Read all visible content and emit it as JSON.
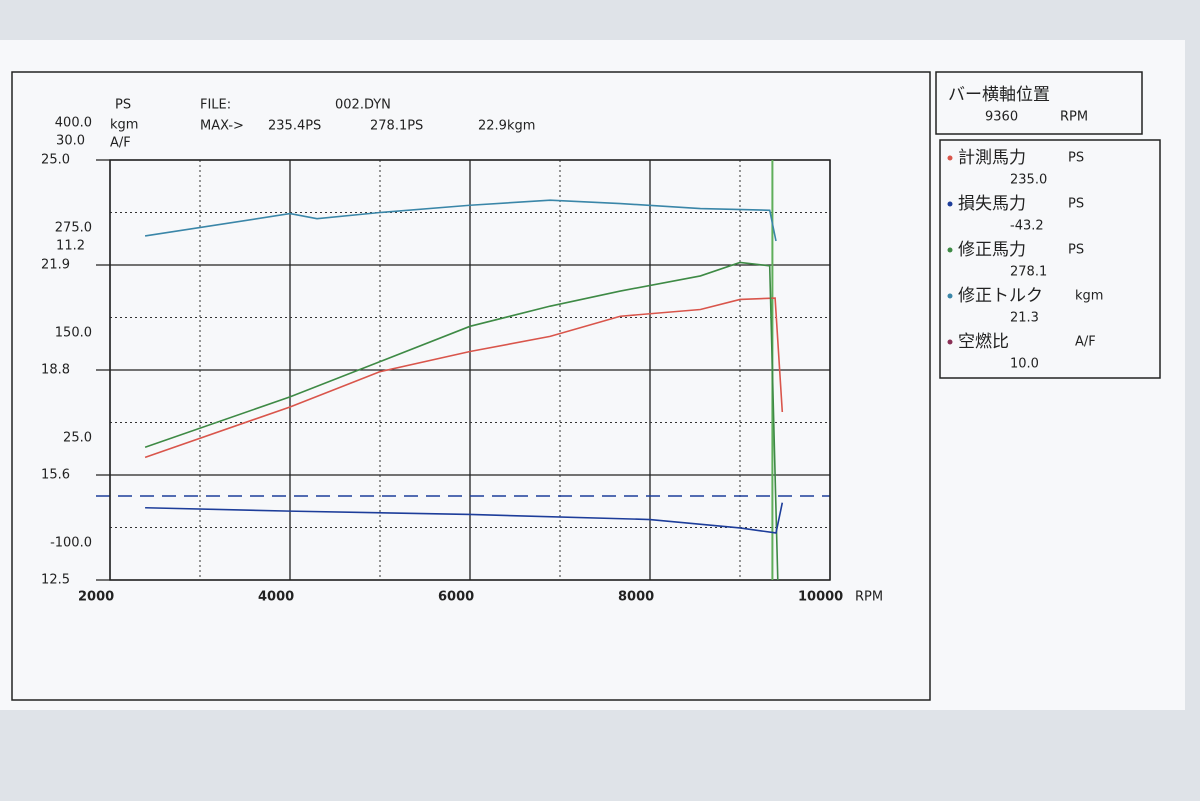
{
  "chart_data": {
    "type": "line",
    "ylabel": "PS",
    "y2label": "kgm",
    "y3label": "A/F",
    "ycolor": "#d0574a",
    "y2color": "#3a8f8a",
    "y3color": "#8a2f55",
    "file_label": "FILE:",
    "file_name": "002.DYN",
    "max_label": "MAX->",
    "xlabel": "RPM",
    "xlim": [
      2000,
      10000
    ],
    "xticks": [
      2000,
      4000,
      6000,
      8000,
      10000
    ],
    "ylim": [
      -100,
      400
    ],
    "yticks": [
      {
        "value": -100,
        "label": "-100.0"
      },
      {
        "value": 25,
        "label": "25.0"
      },
      {
        "value": 150,
        "label": "150.0"
      },
      {
        "value": 275,
        "label": "275.0"
      },
      {
        "value": 400,
        "label": "400.0"
      }
    ],
    "y2lim": [
      -45.2,
      30
    ],
    "y2ticks": [
      {
        "value": 11.2,
        "label": "11.2"
      },
      {
        "value": 30,
        "label": "30.0"
      }
    ],
    "y3lim": [
      12.5,
      25
    ],
    "y3ticks": [
      {
        "value": 12.5,
        "label": "12.5"
      },
      {
        "value": 15.625,
        "label": "15.6"
      },
      {
        "value": 18.75,
        "label": "18.8"
      },
      {
        "value": 21.875,
        "label": "21.9"
      },
      {
        "value": 25,
        "label": "25.0"
      }
    ],
    "hline": 0,
    "grid": true,
    "series": [
      {
        "color": "#d9554b",
        "axis": "y",
        "max": "235.4PS",
        "x": [
          2390,
          4000,
          5000,
          6000,
          6890,
          7670,
          8560,
          9000,
          9390,
          9470
        ],
        "values": [
          46,
          106,
          148,
          172,
          190,
          214,
          222,
          234,
          235.6,
          100
        ]
      },
      {
        "color": "#3e8a45",
        "axis": "y",
        "max": "278.1PS",
        "x": [
          2390,
          4000,
          5000,
          6000,
          6890,
          7670,
          8560,
          9000,
          9330,
          9420
        ],
        "values": [
          58,
          118,
          160,
          202,
          226,
          244,
          262,
          278,
          274,
          -100
        ]
      },
      {
        "color": "#3a86a8",
        "axis": "y2",
        "max": "22.9kgm",
        "x": [
          2390,
          4000,
          4300,
          5000,
          6000,
          6890,
          7670,
          8560,
          9330,
          9400
        ],
        "values": [
          16.4,
          20.4,
          19.5,
          20.6,
          21.9,
          22.8,
          22.2,
          21.3,
          21.0,
          15.5
        ]
      },
      {
        "color": "#1d3d9a",
        "axis": "y",
        "x": [
          2390,
          4000,
          6000,
          8000,
          9000,
          9400,
          9470
        ],
        "values": [
          -14,
          -18,
          -22,
          -28,
          -38,
          -44,
          -8
        ]
      }
    ],
    "cursor_color": "#5fae5a"
  },
  "panel": {
    "title": "バー横軸位置",
    "cursor": 9360,
    "cursor_unit": "RPM",
    "rows": [
      {
        "name": "計測馬力",
        "unit": "PS",
        "value": {
          "value": 235,
          "label": "235.0"
        },
        "color": "#d9554b"
      },
      {
        "name": "損失馬力",
        "unit": "PS",
        "value": -43.2,
        "color": "#1d3d9a"
      },
      {
        "name": "修正馬力",
        "unit": "PS",
        "value": 278.1,
        "color": "#3e8a45"
      },
      {
        "name": "修正トルク",
        "unit": "kgm",
        "value": 21.3,
        "color": "#3a86a8"
      },
      {
        "name": "空燃比",
        "unit": "A/F",
        "value": {
          "value": 10,
          "label": "10.0"
        },
        "color": "#8a2f55"
      }
    ]
  }
}
